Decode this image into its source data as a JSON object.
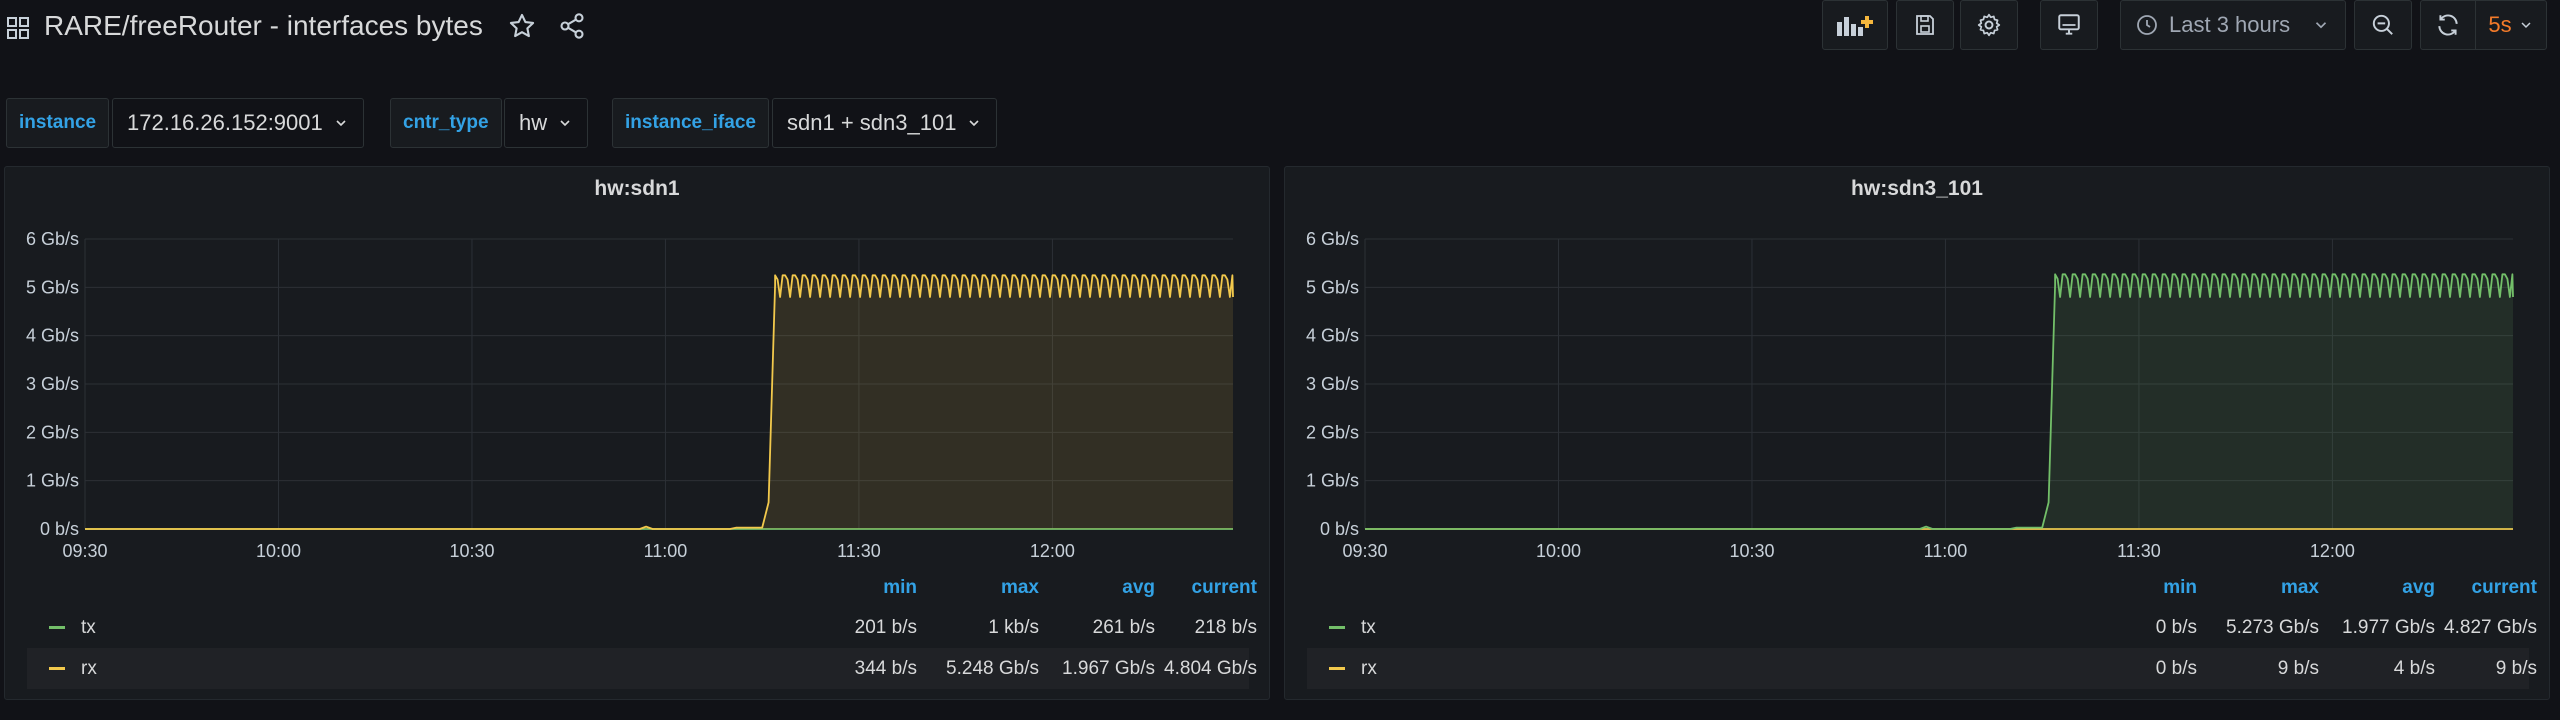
{
  "header": {
    "title": "RARE/freeRouter - interfaces bytes",
    "time_range": "Last 3 hours",
    "refresh_interval": "5s",
    "icons": [
      "apps-icon",
      "star-icon",
      "share-icon",
      "add-panel-icon",
      "save-icon",
      "settings-icon",
      "tv-mode-icon",
      "clock-icon",
      "zoom-out-icon",
      "refresh-icon"
    ]
  },
  "variables": [
    {
      "label": "instance",
      "value": "172.16.26.152:9001"
    },
    {
      "label": "cntr_type",
      "value": "hw"
    },
    {
      "label": "instance_iface",
      "value": "sdn1 + sdn3_101"
    }
  ],
  "panels": [
    {
      "title": "hw:sdn1",
      "accent": "#f2c94c",
      "legend_headers": {
        "min": "min",
        "max": "max",
        "avg": "avg",
        "current": "current"
      },
      "legend": [
        {
          "name": "tx",
          "color": "#73bf69",
          "min": "201 b/s",
          "max": "1 kb/s",
          "avg": "261 b/s",
          "current": "218 b/s"
        },
        {
          "name": "rx",
          "color": "#f2c94c",
          "min": "344 b/s",
          "max": "5.248 Gb/s",
          "avg": "1.967 Gb/s",
          "current": "4.804 Gb/s"
        }
      ]
    },
    {
      "title": "hw:sdn3_101",
      "accent": "#73bf69",
      "legend_headers": {
        "min": "min",
        "max": "max",
        "avg": "avg",
        "current": "current"
      },
      "legend": [
        {
          "name": "tx",
          "color": "#73bf69",
          "min": "0 b/s",
          "max": "5.273 Gb/s",
          "avg": "1.977 Gb/s",
          "current": "4.827 Gb/s"
        },
        {
          "name": "rx",
          "color": "#f2c94c",
          "min": "0 b/s",
          "max": "9 b/s",
          "avg": "4 b/s",
          "current": "9 b/s"
        }
      ]
    }
  ],
  "chart_data": [
    {
      "type": "area",
      "title": "hw:sdn1",
      "unit": "Gb/s",
      "yticks": [
        "0 b/s",
        "1 Gb/s",
        "2 Gb/s",
        "3 Gb/s",
        "4 Gb/s",
        "5 Gb/s",
        "6 Gb/s"
      ],
      "ylim": [
        0,
        6
      ],
      "xticks": [
        "09:30",
        "10:00",
        "10:30",
        "11:00",
        "11:30",
        "12:00"
      ],
      "xlim": [
        "09:30",
        "12:28"
      ],
      "grid": true,
      "legend_position": "bottom",
      "series": [
        {
          "name": "tx",
          "color": "#73bf69",
          "x": [
            "09:30",
            "12:28"
          ],
          "values": [
            0,
            0
          ]
        },
        {
          "name": "rx",
          "color": "#f2c94c",
          "x": [
            "09:30",
            "10:56",
            "10:57",
            "10:58",
            "11:10",
            "11:11",
            "11:15",
            "11:16",
            "11:17",
            "12:28"
          ],
          "values": [
            0,
            0,
            0.05,
            0,
            0,
            0.03,
            0.03,
            0.55,
            5.05,
            5.05
          ],
          "oscillation": {
            "from": "11:17",
            "min": 4.8,
            "max": 5.25
          }
        }
      ]
    },
    {
      "type": "area",
      "title": "hw:sdn3_101",
      "unit": "Gb/s",
      "yticks": [
        "0 b/s",
        "1 Gb/s",
        "2 Gb/s",
        "3 Gb/s",
        "4 Gb/s",
        "5 Gb/s",
        "6 Gb/s"
      ],
      "ylim": [
        0,
        6
      ],
      "xticks": [
        "09:30",
        "10:00",
        "10:30",
        "11:00",
        "11:30",
        "12:00"
      ],
      "xlim": [
        "09:30",
        "12:28"
      ],
      "grid": true,
      "legend_position": "bottom",
      "series": [
        {
          "name": "tx",
          "color": "#73bf69",
          "x": [
            "09:30",
            "10:56",
            "10:57",
            "10:58",
            "11:10",
            "11:11",
            "11:15",
            "11:16",
            "11:17",
            "12:28"
          ],
          "values": [
            0,
            0,
            0.05,
            0,
            0,
            0.03,
            0.03,
            0.55,
            5.05,
            5.05
          ],
          "oscillation": {
            "from": "11:17",
            "min": 4.8,
            "max": 5.27
          }
        },
        {
          "name": "rx",
          "color": "#f2c94c",
          "x": [
            "09:30",
            "12:28"
          ],
          "values": [
            0,
            0
          ]
        }
      ]
    }
  ]
}
